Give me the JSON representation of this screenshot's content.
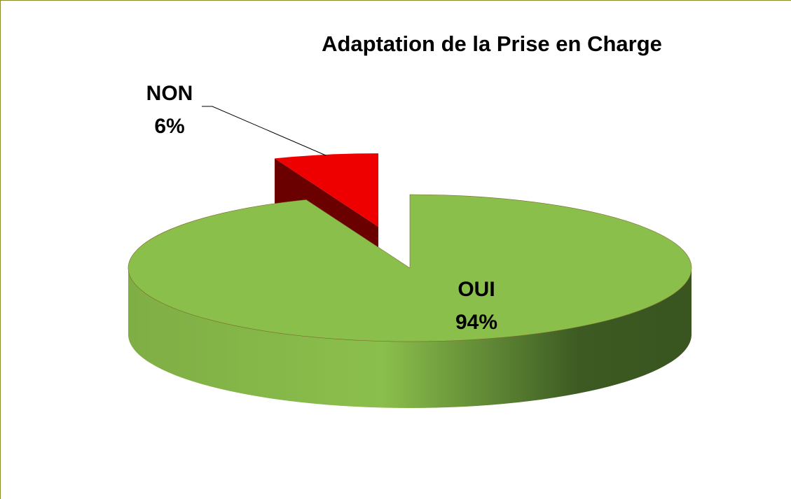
{
  "chart_data": {
    "type": "pie3d",
    "title": "Adaptation de la Prise en Charge",
    "categories": [
      "OUI",
      "NON"
    ],
    "values": [
      94,
      6
    ],
    "value_labels": [
      "94%",
      "6%"
    ],
    "colors": [
      "#8bbf4c",
      "#ee0000"
    ]
  }
}
